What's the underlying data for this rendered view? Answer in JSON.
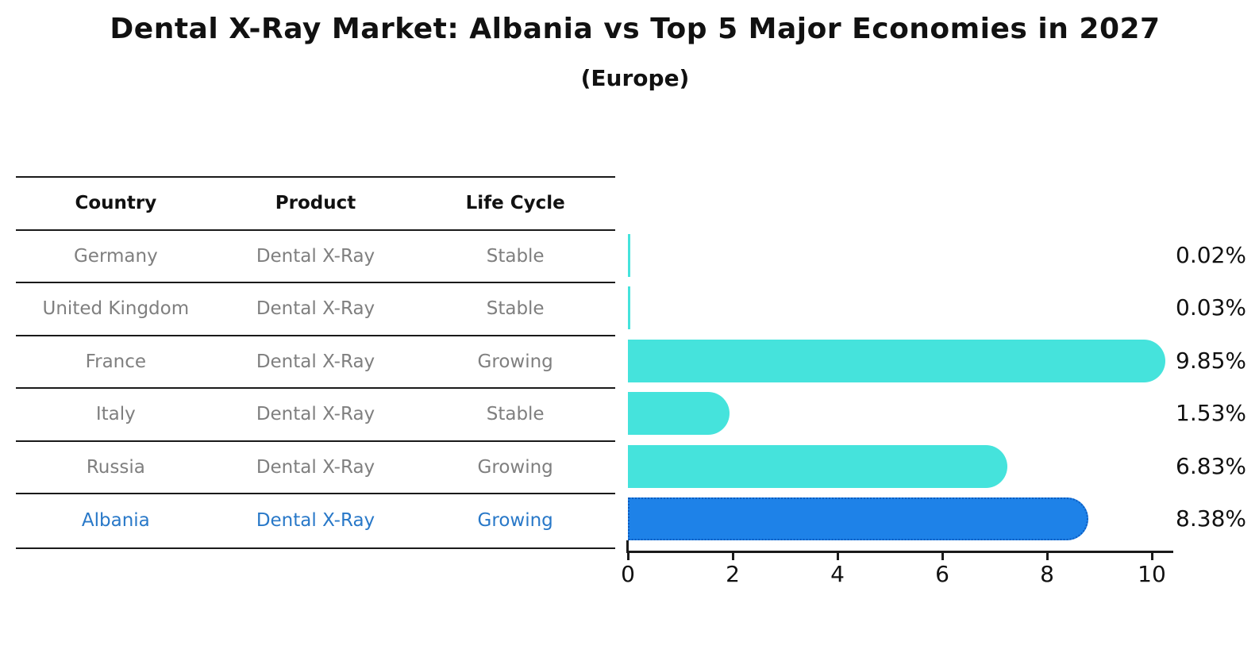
{
  "title": "Dental X-Ray Market: Albania vs Top 5 Major Economies in 2027",
  "subtitle": "(Europe)",
  "table": {
    "headers": [
      "Country",
      "Product",
      "Life Cycle"
    ],
    "rows": [
      {
        "country": "Germany",
        "product": "Dental X-Ray",
        "life_cycle": "Stable",
        "highlight": false
      },
      {
        "country": "United Kingdom",
        "product": "Dental X-Ray",
        "life_cycle": "Stable",
        "highlight": false
      },
      {
        "country": "France",
        "product": "Dental X-Ray",
        "life_cycle": "Growing",
        "highlight": false
      },
      {
        "country": "Italy",
        "product": "Dental X-Ray",
        "life_cycle": "Stable",
        "highlight": false
      },
      {
        "country": "Russia",
        "product": "Dental X-Ray",
        "life_cycle": "Growing",
        "highlight": false
      },
      {
        "country": "Albania",
        "product": "Dental X-Ray",
        "life_cycle": "Growing",
        "highlight": true
      }
    ]
  },
  "chart_data": {
    "type": "bar",
    "orientation": "horizontal",
    "categories": [
      "Germany",
      "United Kingdom",
      "France",
      "Italy",
      "Russia",
      "Albania"
    ],
    "values": [
      0.02,
      0.03,
      9.85,
      1.53,
      6.83,
      8.38
    ],
    "value_labels": [
      "0.02%",
      "0.03%",
      "9.85%",
      "1.53%",
      "6.83%",
      "8.38%"
    ],
    "title": "Dental X-Ray Market: Albania vs Top 5 Major Economies in 2027",
    "subtitle": "(Europe)",
    "xlabel": "",
    "ylabel": "",
    "xlim": [
      0,
      10.4
    ],
    "xticks": [
      0,
      2,
      4,
      6,
      8,
      10
    ],
    "grid": false,
    "legend": false,
    "highlight_index": 5,
    "bar_color": "#45E3DC",
    "highlight_bar_color": "#1E82E8",
    "highlight_edge_color": "#0d5cc0",
    "highlight_text_color": "#2878C8",
    "row_text_color": "#7f7f7f",
    "axis_color": "#1a1a1a"
  }
}
